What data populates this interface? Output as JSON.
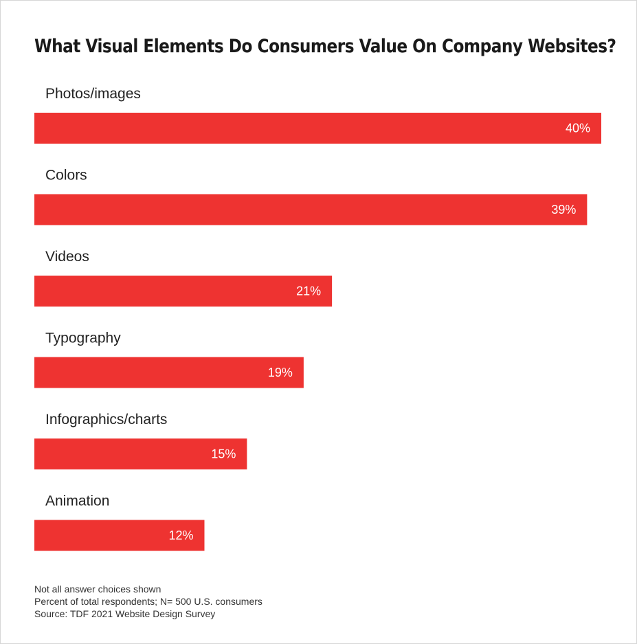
{
  "title": "What Visual Elements Do Consumers Value On Company Websites?",
  "notes": [
    "Not all answer choices shown",
    "Percent of total respondents; N= 500 U.S. consumers",
    "Source: TDF 2021 Website Design Survey"
  ],
  "colors": {
    "bar": "#ee3331",
    "text": "#222222",
    "value_text": "#ffffff"
  },
  "chart_data": {
    "type": "bar",
    "orientation": "horizontal",
    "title": "What Visual Elements Do Consumers Value On Company Websites?",
    "categories": [
      "Photos/images",
      "Colors",
      "Videos",
      "Typography",
      "Infographics/charts",
      "Animation"
    ],
    "values": [
      40,
      39,
      21,
      19,
      15,
      12
    ],
    "value_labels": [
      "40%",
      "39%",
      "21%",
      "19%",
      "15%",
      "12%"
    ],
    "unit": "%",
    "xlim": [
      0,
      40
    ],
    "xlabel": "",
    "ylabel": "",
    "grid": false,
    "legend": "none"
  }
}
